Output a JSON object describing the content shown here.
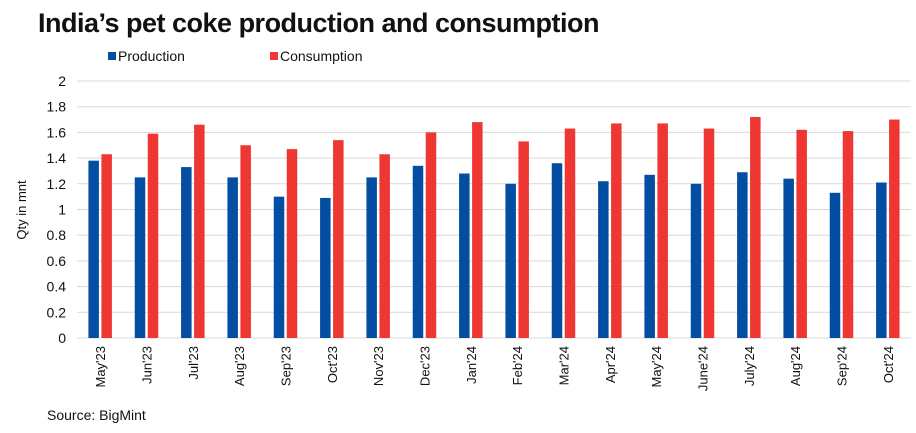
{
  "chart_data": {
    "type": "bar",
    "title": "India’s pet coke production and consumption",
    "ylabel": "Qty in mnt",
    "xlabel": "",
    "ylim": [
      0,
      2
    ],
    "yticks": [
      "0",
      "0.2",
      "0.4",
      "0.6",
      "0.8",
      "1",
      "1.2",
      "1.4",
      "1.6",
      "1.8",
      "2"
    ],
    "grid": true,
    "legend_position": "top-left",
    "categories": [
      "May'23",
      "Jun'23",
      "Jul'23",
      "Aug'23",
      "Sep'23",
      "Oct'23",
      "Nov'23",
      "Dec'23",
      "Jan'24",
      "Feb'24",
      "Mar'24",
      "Apr'24",
      "May'24",
      "June'24",
      "July'24",
      "Aug'24",
      "Sep'24",
      "Oct'24"
    ],
    "series": [
      {
        "name": "Production",
        "color": "#034ea2",
        "values": [
          1.38,
          1.25,
          1.33,
          1.25,
          1.1,
          1.09,
          1.25,
          1.34,
          1.28,
          1.2,
          1.36,
          1.22,
          1.27,
          1.2,
          1.29,
          1.24,
          1.13,
          1.21
        ]
      },
      {
        "name": "Consumption",
        "color": "#ee3733",
        "values": [
          1.43,
          1.59,
          1.66,
          1.5,
          1.47,
          1.54,
          1.43,
          1.6,
          1.68,
          1.53,
          1.63,
          1.67,
          1.67,
          1.63,
          1.72,
          1.62,
          1.61,
          1.7
        ]
      }
    ],
    "source": "Source: BigMint"
  }
}
